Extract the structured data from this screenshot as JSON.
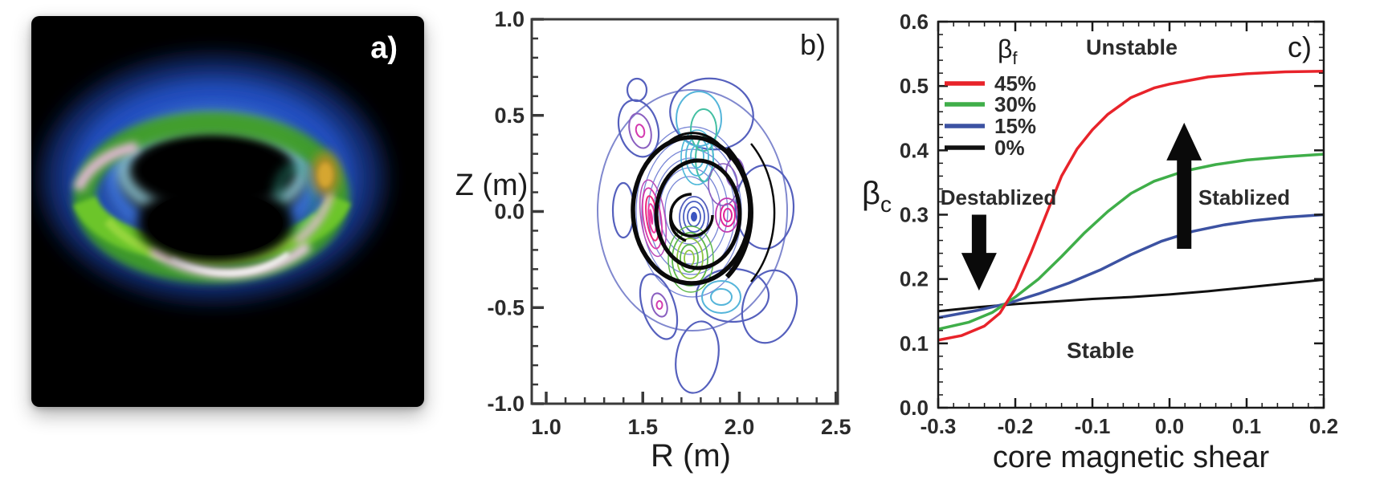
{
  "figure_type": "three-panel scientific figure",
  "background": "#ffffff",
  "chart_data": [
    {
      "id": "panel_a",
      "type": "other",
      "label": "a)",
      "description": "3D volume rendering of a plasma torus: tilted ring with outer blue glow, bright green front band, pink/white filament highlights and a small yellow-orange patch, on a black rounded square with drop shadow",
      "colors": {
        "glow_blue": "#2450c0",
        "inner_blue": "#3a6fd8",
        "rim_cyan": "#9fdcea",
        "ring_green": "#6cc52c",
        "filament_pink": "#f3cde9",
        "patch_yellow": "#d8a830",
        "background": "#000000",
        "label": "#ffffff"
      }
    },
    {
      "id": "panel_b",
      "type": "contour",
      "label": "b)",
      "xlabel": "R (m)",
      "ylabel": "Z (m)",
      "xlim": [
        1.0,
        2.5
      ],
      "ylim": [
        -1.0,
        1.0
      ],
      "x_tick_labels": [
        "1.0",
        "1.5",
        "2.0",
        "2.5"
      ],
      "y_tick_labels": [
        "1.0",
        "0.5",
        "0.0",
        "-0.5",
        "-1.0"
      ],
      "description": "Perturbation mode-structure contours in the R-Z plane: ring of blue/purple lobes with magenta cores around R=1.75 m, cyan, green and magenta cells inside, overlaid by thick black nested flux surfaces with an island crescent on the outboard side",
      "contour_colors": [
        "#5560bd",
        "#8a5fc0",
        "#55b5da",
        "#43bfa2",
        "#5cb848",
        "#8dc63f",
        "#ee2a7b",
        "#e0289a"
      ]
    },
    {
      "id": "panel_c",
      "type": "line",
      "label": "c)",
      "xlabel": "core magnetic shear",
      "ylabel": "βc",
      "ylabel_main": "β",
      "ylabel_sub": "c",
      "xlim": [
        -0.3,
        0.2
      ],
      "ylim": [
        0.0,
        0.6
      ],
      "x_tick_labels": [
        "-0.3",
        "-0.2",
        "-0.1",
        "0.0",
        "0.1",
        "0.2"
      ],
      "y_tick_labels": [
        "0.0",
        "0.1",
        "0.2",
        "0.3",
        "0.4",
        "0.5",
        "0.6"
      ],
      "legend": {
        "title_main": "β",
        "title_sub": "f",
        "items": [
          {
            "label": "45%",
            "color": "#e8232a"
          },
          {
            "label": "30%",
            "color": "#3fae49"
          },
          {
            "label": "15%",
            "color": "#3c52a2"
          },
          {
            "label": "0%",
            "color": "#111111"
          }
        ]
      },
      "series": [
        {
          "name": "45%",
          "color": "#e8232a",
          "points": [
            [
              -0.3,
              0.105
            ],
            [
              -0.27,
              0.112
            ],
            [
              -0.24,
              0.127
            ],
            [
              -0.22,
              0.147
            ],
            [
              -0.2,
              0.185
            ],
            [
              -0.18,
              0.24
            ],
            [
              -0.16,
              0.3
            ],
            [
              -0.14,
              0.36
            ],
            [
              -0.12,
              0.402
            ],
            [
              -0.1,
              0.432
            ],
            [
              -0.08,
              0.456
            ],
            [
              -0.05,
              0.482
            ],
            [
              -0.02,
              0.497
            ],
            [
              0.0,
              0.503
            ],
            [
              0.05,
              0.514
            ],
            [
              0.1,
              0.519
            ],
            [
              0.15,
              0.522
            ],
            [
              0.2,
              0.523
            ]
          ]
        },
        {
          "name": "30%",
          "color": "#3fae49",
          "points": [
            [
              -0.3,
              0.122
            ],
            [
              -0.26,
              0.133
            ],
            [
              -0.23,
              0.148
            ],
            [
              -0.2,
              0.172
            ],
            [
              -0.17,
              0.2
            ],
            [
              -0.14,
              0.235
            ],
            [
              -0.11,
              0.272
            ],
            [
              -0.08,
              0.305
            ],
            [
              -0.05,
              0.333
            ],
            [
              -0.02,
              0.352
            ],
            [
              0.02,
              0.368
            ],
            [
              0.06,
              0.378
            ],
            [
              0.1,
              0.385
            ],
            [
              0.15,
              0.39
            ],
            [
              0.2,
              0.394
            ]
          ]
        },
        {
          "name": "15%",
          "color": "#3c52a2",
          "points": [
            [
              -0.3,
              0.14
            ],
            [
              -0.25,
              0.151
            ],
            [
              -0.21,
              0.162
            ],
            [
              -0.17,
              0.177
            ],
            [
              -0.13,
              0.194
            ],
            [
              -0.09,
              0.214
            ],
            [
              -0.05,
              0.238
            ],
            [
              -0.01,
              0.259
            ],
            [
              0.03,
              0.274
            ],
            [
              0.07,
              0.284
            ],
            [
              0.11,
              0.291
            ],
            [
              0.15,
              0.296
            ],
            [
              0.2,
              0.3
            ]
          ]
        },
        {
          "name": "0%",
          "color": "#111111",
          "points": [
            [
              -0.3,
              0.15
            ],
            [
              -0.25,
              0.156
            ],
            [
              -0.2,
              0.161
            ],
            [
              -0.15,
              0.165
            ],
            [
              -0.1,
              0.169
            ],
            [
              -0.05,
              0.172
            ],
            [
              0.0,
              0.176
            ],
            [
              0.05,
              0.181
            ],
            [
              0.1,
              0.187
            ],
            [
              0.15,
              0.193
            ],
            [
              0.2,
              0.199
            ]
          ]
        }
      ],
      "annotations": {
        "top": "Unstable",
        "bottom": "Stable",
        "left": "Destablized",
        "right": "Stablized"
      },
      "arrows": [
        {
          "direction": "down",
          "x": -0.247,
          "from": 0.3,
          "to": 0.182
        },
        {
          "direction": "up",
          "x": 0.019,
          "from": 0.247,
          "to": 0.443
        }
      ]
    }
  ]
}
